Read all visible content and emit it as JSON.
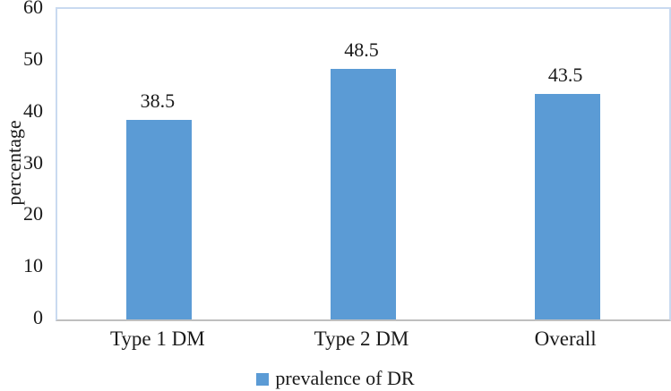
{
  "chart_data": {
    "type": "bar",
    "title": "",
    "categories": [
      "Type 1 DM",
      "Type 2 DM",
      "Overall"
    ],
    "series": [
      {
        "name": "prevalence of DR",
        "values": [
          38.5,
          48.5,
          43.5
        ]
      }
    ],
    "data_labels": [
      "38.5",
      "48.5",
      "43.5"
    ],
    "xlabel": "",
    "ylabel": "percentage",
    "ylim": [
      0,
      60
    ],
    "yticks": [
      0,
      10,
      20,
      30,
      40,
      50,
      60
    ],
    "grid": false,
    "legend_position": "bottom",
    "colors": {
      "bar": "#5b9bd5",
      "plot_border": "#c9daf0",
      "axis_line": "#bfbfbf",
      "text": "#1a1a1a"
    }
  },
  "legend": {
    "label": "prevalence of DR"
  }
}
